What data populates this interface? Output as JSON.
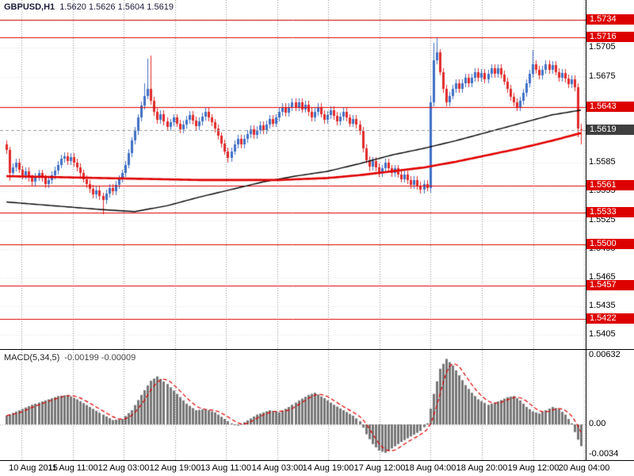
{
  "window": {
    "title_symbol": "GBPUSD,H1",
    "title_ohlc": "1.5620 1.5626 1.5604 1.5619"
  },
  "colors": {
    "bull": "#3f6fc4",
    "bear": "#e02a2a",
    "level_line": "#dd0000",
    "level_tag_bg": "#dd0000",
    "current_tag_bg": "#3f3f3f",
    "ma_black": "#000000",
    "ma_red": "#e00000",
    "histogram": "#777777",
    "signal": "#dd0000",
    "grid_v": "#909090",
    "grid_h": "#e2e2e2"
  },
  "chart_data": [
    {
      "type": "candlestick",
      "symbol": "GBPUSD",
      "timeframe": "H1",
      "current_bar": {
        "open": 1.562,
        "high": 1.5626,
        "low": 1.5604,
        "close": 1.5619
      },
      "ylim": [
        1.5392,
        1.5755
      ],
      "grid_y": [
        1.5735,
        1.5705,
        1.5675,
        1.5645,
        1.5615,
        1.5585,
        1.5555,
        1.5525,
        1.5495,
        1.5465,
        1.5435,
        1.5405
      ],
      "y_ticks": [
        {
          "label": "1.5705",
          "value": 1.5705
        },
        {
          "label": "1.5675",
          "value": 1.5675
        },
        {
          "label": "1.5585",
          "value": 1.5585
        },
        {
          "label": "1.5555",
          "value": 1.5555
        },
        {
          "label": "1.5525",
          "value": 1.5525
        },
        {
          "label": "1.5495",
          "value": 1.5495
        },
        {
          "label": "1.5465",
          "value": 1.5465
        },
        {
          "label": "1.5435",
          "value": 1.5435
        },
        {
          "label": "1.5405",
          "value": 1.5405
        }
      ],
      "levels": [
        {
          "label": "1.5734",
          "value": 1.5734
        },
        {
          "label": "1.5716",
          "value": 1.5716
        },
        {
          "label": "1.5643",
          "value": 1.5643
        },
        {
          "label": "1.5561",
          "value": 1.5561
        },
        {
          "label": "1.5533",
          "value": 1.5533
        },
        {
          "label": "1.5500",
          "value": 1.55
        },
        {
          "label": "1.5457",
          "value": 1.5457
        },
        {
          "label": "1.5422",
          "value": 1.5422
        }
      ],
      "current_price": {
        "label": "1.5619",
        "value": 1.5619
      },
      "x_labels": [
        "10 Aug 2015",
        "11 Aug 11:00",
        "12 Aug 03:00",
        "12 Aug 19:00",
        "13 Aug 11:00",
        "14 Aug 03:00",
        "14 Aug 19:00",
        "17 Aug 12:00",
        "18 Aug 04:00",
        "18 Aug 20:00",
        "19 Aug 12:00",
        "20 Aug 04:00"
      ],
      "candles": {
        "first_open": 1.5604,
        "default_wick": 0.0004,
        "closes": [
          1.5598,
          1.5574,
          1.558,
          1.5585,
          1.5578,
          1.5572,
          1.5576,
          1.5569,
          1.5565,
          1.557,
          1.5574,
          1.5569,
          1.5563,
          1.5567,
          1.5572,
          1.5577,
          1.5583,
          1.5589,
          1.5592,
          1.5587,
          1.5591,
          1.5585,
          1.558,
          1.5574,
          1.5568,
          1.5563,
          1.5558,
          1.5552,
          1.5556,
          1.555,
          1.5546,
          1.5553,
          1.5559,
          1.5555,
          1.5562,
          1.5568,
          1.5574,
          1.5583,
          1.5595,
          1.5608,
          1.5618,
          1.5632,
          1.5645,
          1.5655,
          1.5662,
          1.565,
          1.5638,
          1.563,
          1.5636,
          1.5628,
          1.5622,
          1.5627,
          1.5632,
          1.5626,
          1.562,
          1.5625,
          1.563,
          1.5635,
          1.5629,
          1.5623,
          1.5628,
          1.5633,
          1.5638,
          1.5632,
          1.5627,
          1.5621,
          1.5613,
          1.5605,
          1.5597,
          1.559,
          1.5597,
          1.5604,
          1.561,
          1.5604,
          1.561,
          1.5615,
          1.562,
          1.5614,
          1.5619,
          1.5624,
          1.5619,
          1.5625,
          1.5631,
          1.5626,
          1.5632,
          1.5638,
          1.5643,
          1.5637,
          1.5643,
          1.5648,
          1.5643,
          1.5648,
          1.5641,
          1.5646,
          1.5638,
          1.5632,
          1.5638,
          1.5643,
          1.5636,
          1.563,
          1.5635,
          1.564,
          1.5634,
          1.5628,
          1.5633,
          1.5638,
          1.5632,
          1.5626,
          1.5631,
          1.5625,
          1.5618,
          1.56,
          1.5588,
          1.5581,
          1.5587,
          1.558,
          1.5574,
          1.5579,
          1.5585,
          1.5579,
          1.5574,
          1.5579,
          1.5573,
          1.5568,
          1.5573,
          1.5567,
          1.5562,
          1.5567,
          1.5561,
          1.5557,
          1.5563,
          1.5559,
          1.5648,
          1.5692,
          1.57,
          1.568,
          1.5662,
          1.5648,
          1.5655,
          1.5662,
          1.5668,
          1.5662,
          1.5668,
          1.5674,
          1.5668,
          1.5674,
          1.568,
          1.5674,
          1.5679,
          1.5672,
          1.5678,
          1.5684,
          1.5678,
          1.5684,
          1.5677,
          1.567,
          1.5662,
          1.5654,
          1.5648,
          1.5643,
          1.565,
          1.5658,
          1.5668,
          1.5678,
          1.5688,
          1.5682,
          1.5676,
          1.5682,
          1.5688,
          1.5682,
          1.5687,
          1.568,
          1.5674,
          1.5679,
          1.5673,
          1.5667,
          1.5672,
          1.5664,
          1.5621,
          1.5619
        ],
        "wick_overrides": {
          "1": {
            "l": 1.5566
          },
          "30": {
            "l": 1.5531
          },
          "43": {
            "h": 1.5668
          },
          "44": {
            "h": 1.5694
          },
          "45": {
            "h": 1.5697
          },
          "69": {
            "l": 1.5585
          },
          "113": {
            "l": 1.5576
          },
          "132": {
            "h": 1.5655,
            "l": 1.5554
          },
          "133": {
            "h": 1.571
          },
          "134": {
            "h": 1.5716
          },
          "164": {
            "h": 1.5703
          },
          "178": {
            "l": 1.5612
          },
          "179": {
            "o": 1.562,
            "h": 1.5626,
            "l": 1.5604
          }
        }
      },
      "ma_black_anchors": [
        [
          0,
          1.5544
        ],
        [
          15,
          1.554
        ],
        [
          30,
          1.5536
        ],
        [
          40,
          1.5534
        ],
        [
          50,
          1.554
        ],
        [
          60,
          1.5549
        ],
        [
          70,
          1.5557
        ],
        [
          80,
          1.5565
        ],
        [
          90,
          1.5571
        ],
        [
          100,
          1.5576
        ],
        [
          110,
          1.5584
        ],
        [
          120,
          1.5593
        ],
        [
          130,
          1.56
        ],
        [
          140,
          1.5608
        ],
        [
          150,
          1.5617
        ],
        [
          160,
          1.5626
        ],
        [
          170,
          1.5635
        ],
        [
          179,
          1.564
        ]
      ],
      "ma_red_anchors": [
        [
          0,
          1.5571
        ],
        [
          30,
          1.5569
        ],
        [
          60,
          1.5567
        ],
        [
          85,
          1.5567
        ],
        [
          100,
          1.5569
        ],
        [
          110,
          1.5572
        ],
        [
          120,
          1.5576
        ],
        [
          130,
          1.558
        ],
        [
          140,
          1.5586
        ],
        [
          150,
          1.5593
        ],
        [
          160,
          1.56
        ],
        [
          170,
          1.5608
        ],
        [
          179,
          1.5616
        ]
      ]
    },
    {
      "type": "bar",
      "name": "MACD(5,34,5)",
      "values_text": "-0.00199 -0.00009",
      "current": {
        "macd": -0.00199,
        "signal": -9e-05
      },
      "ylim": [
        -0.0034,
        0.00632
      ],
      "signal_sma_period": 5,
      "y_ticks": [
        {
          "label": "0.00632",
          "value": 0.00632
        },
        {
          "label": "0.00",
          "value": 0
        },
        {
          "label": "-0.0034",
          "value": -0.0034
        }
      ],
      "macd_anchors": [
        [
          0,
          0.0008
        ],
        [
          4,
          0.0013
        ],
        [
          8,
          0.0018
        ],
        [
          12,
          0.0022
        ],
        [
          16,
          0.0026
        ],
        [
          19,
          0.0027
        ],
        [
          22,
          0.0023
        ],
        [
          26,
          0.0016
        ],
        [
          30,
          0.0009
        ],
        [
          33,
          0.0004
        ],
        [
          36,
          0.0005
        ],
        [
          39,
          0.0013
        ],
        [
          42,
          0.0027
        ],
        [
          45,
          0.004
        ],
        [
          47,
          0.0044
        ],
        [
          50,
          0.0037
        ],
        [
          53,
          0.0028
        ],
        [
          56,
          0.0019
        ],
        [
          59,
          0.0013
        ],
        [
          62,
          0.0014
        ],
        [
          65,
          0.0011
        ],
        [
          68,
          0.0005
        ],
        [
          70,
          0.0001
        ],
        [
          72,
          -0.0001
        ],
        [
          74,
          0.0002
        ],
        [
          78,
          0.0009
        ],
        [
          82,
          0.0013
        ],
        [
          85,
          0.0011
        ],
        [
          88,
          0.0016
        ],
        [
          91,
          0.0022
        ],
        [
          94,
          0.0027
        ],
        [
          96,
          0.0029
        ],
        [
          99,
          0.0024
        ],
        [
          102,
          0.0018
        ],
        [
          105,
          0.0013
        ],
        [
          108,
          0.0008
        ],
        [
          110,
          0.0003
        ],
        [
          112,
          -0.0009
        ],
        [
          114,
          -0.0018
        ],
        [
          116,
          -0.0024
        ],
        [
          118,
          -0.0026
        ],
        [
          120,
          -0.0022
        ],
        [
          123,
          -0.0016
        ],
        [
          126,
          -0.0011
        ],
        [
          129,
          -0.0006
        ],
        [
          131,
          0.0001
        ],
        [
          133,
          0.0028
        ],
        [
          135,
          0.0051
        ],
        [
          137,
          0.006
        ],
        [
          139,
          0.0054
        ],
        [
          141,
          0.0045
        ],
        [
          143,
          0.0036
        ],
        [
          145,
          0.0029
        ],
        [
          147,
          0.0023
        ],
        [
          150,
          0.0018
        ],
        [
          153,
          0.0021
        ],
        [
          156,
          0.0025
        ],
        [
          158,
          0.0026
        ],
        [
          160,
          0.0022
        ],
        [
          162,
          0.0016
        ],
        [
          164,
          0.0012
        ],
        [
          166,
          0.001
        ],
        [
          168,
          0.0013
        ],
        [
          170,
          0.0016
        ],
        [
          172,
          0.0014
        ],
        [
          174,
          0.0009
        ],
        [
          175,
          0.0005
        ],
        [
          176,
          0.0001
        ],
        [
          177,
          -0.0007
        ],
        [
          178,
          -0.0014
        ],
        [
          179,
          -0.00199
        ]
      ]
    }
  ]
}
